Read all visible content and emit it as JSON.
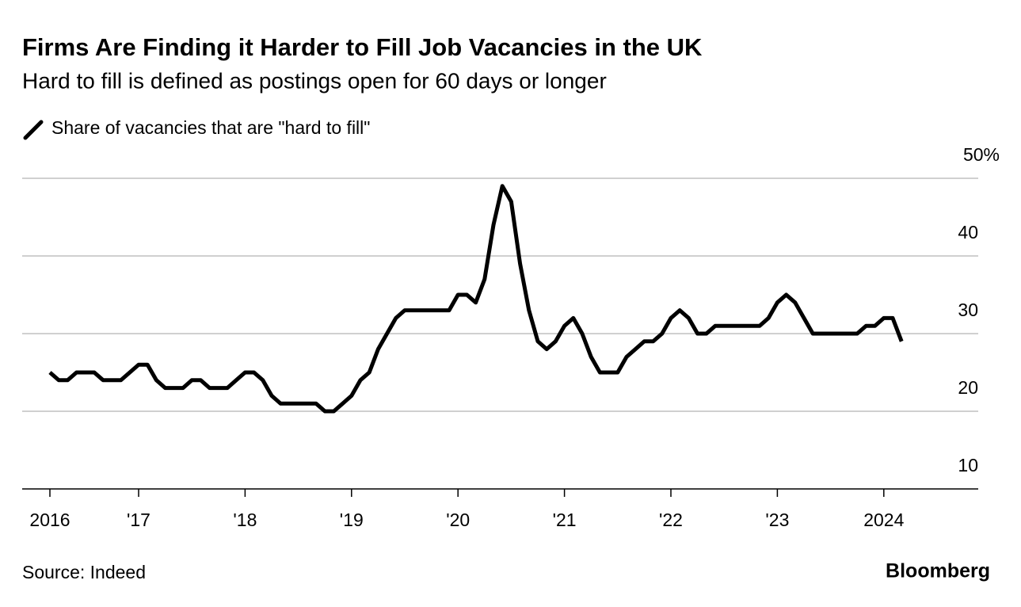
{
  "chart_data": {
    "type": "line",
    "title": "Firms Are Finding it Harder to Fill Job Vacancies in the UK",
    "subtitle": "Hard to fill is defined as postings open for 60 days or longer",
    "source": "Source: Indeed",
    "brand": "Bloomberg",
    "categories": [
      "2016",
      null,
      null,
      null,
      null,
      null,
      null,
      null,
      null,
      null,
      "'17",
      null,
      null,
      null,
      null,
      null,
      null,
      null,
      null,
      null,
      null,
      null,
      "'18",
      null,
      null,
      null,
      null,
      null,
      null,
      null,
      null,
      null,
      null,
      null,
      "'19",
      null,
      null,
      null,
      null,
      null,
      null,
      null,
      null,
      null,
      null,
      null,
      "'20",
      null,
      null,
      null,
      null,
      null,
      null,
      null,
      null,
      null,
      null,
      null,
      "'21",
      null,
      null,
      null,
      null,
      null,
      null,
      null,
      null,
      null,
      null,
      null,
      "'22",
      null,
      null,
      null,
      null,
      null,
      null,
      null,
      null,
      null,
      null,
      null,
      "'23",
      null,
      null,
      null,
      null,
      null,
      null,
      null,
      null,
      null,
      null,
      null,
      "2024",
      null,
      null
    ],
    "series": [
      {
        "name": "Share of vacancies that are \"hard to fill\"",
        "color": "#000000",
        "values": [
          25,
          24,
          24,
          25,
          25,
          25,
          24,
          24,
          24,
          25,
          26,
          26,
          24,
          23,
          23,
          23,
          24,
          24,
          23,
          23,
          23,
          24,
          25,
          25,
          24,
          22,
          21,
          21,
          21,
          21,
          21,
          20,
          20,
          21,
          22,
          24,
          25,
          28,
          30,
          32,
          33,
          33,
          33,
          33,
          33,
          33,
          35,
          35,
          34,
          37,
          44,
          49,
          47,
          39,
          33,
          29,
          28,
          29,
          31,
          32,
          30,
          27,
          25,
          25,
          25,
          27,
          28,
          29,
          29,
          30,
          32,
          33,
          32,
          30,
          30,
          31,
          31,
          31,
          31,
          31,
          31,
          32,
          34,
          35,
          34,
          32,
          30,
          30,
          30,
          30,
          30,
          30,
          31,
          31,
          32,
          32,
          29
        ]
      }
    ],
    "ylim": [
      10,
      50
    ],
    "yticks": [
      10,
      20,
      30,
      40,
      {
        "value": 50,
        "label": "50%"
      }
    ],
    "grid": true
  }
}
